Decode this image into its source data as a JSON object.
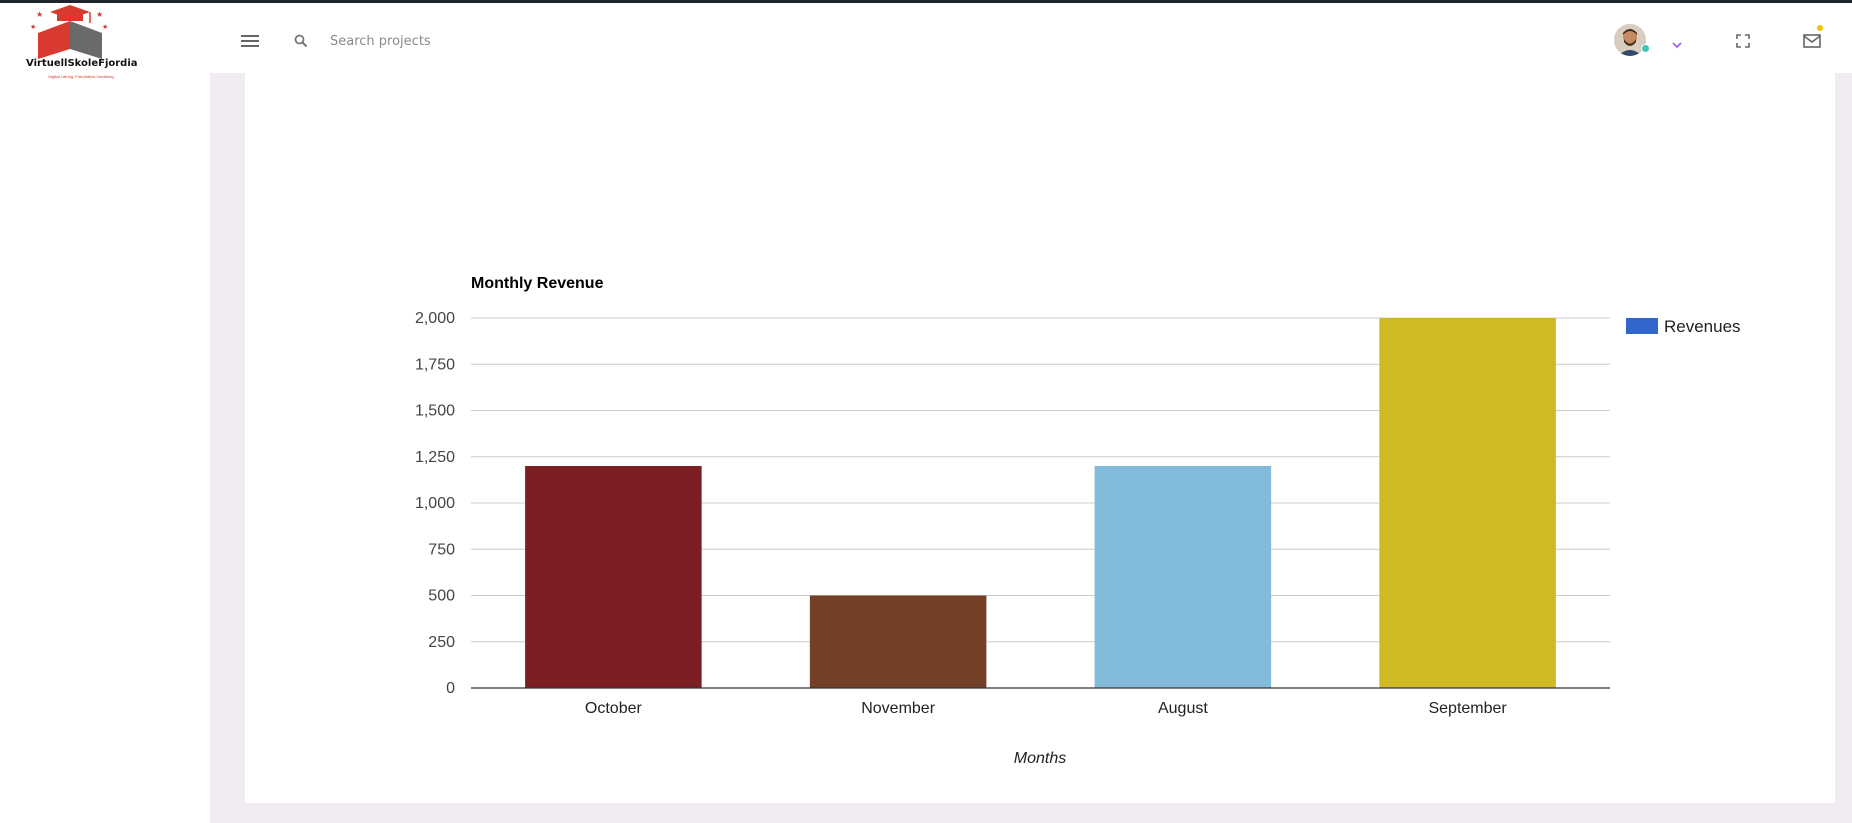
{
  "header": {
    "logo_name": "VirtuellSkoleFjordia",
    "logo_tagline": "Digital Læring, Fremtidens Vurdering",
    "search_placeholder": "Search projects"
  },
  "icons": {
    "menu": "menu-icon",
    "search": "search-icon",
    "chevron": "chevron-down-icon",
    "fullscreen": "fullscreen-icon",
    "mail": "mail-icon"
  },
  "colors": {
    "accent": "#9b59f6",
    "notification": "#f2c200",
    "legend": "#3366cc",
    "page_bg": "#f0ecf2"
  },
  "chart_data": {
    "type": "bar",
    "title": "Monthly Revenue",
    "xlabel": "Months",
    "ylabel": "",
    "categories": [
      "October",
      "November",
      "August",
      "September"
    ],
    "series": [
      {
        "name": "Revenues",
        "values": [
          1200,
          500,
          1200,
          2000
        ]
      }
    ],
    "bar_colors": [
      "#7b1f24",
      "#744128",
      "#82bcda",
      "#cfba25"
    ],
    "ylim": [
      0,
      2000
    ],
    "yticks": [
      0,
      250,
      500,
      750,
      1000,
      1250,
      1500,
      1750,
      2000
    ],
    "ytick_labels": [
      "0",
      "250",
      "500",
      "750",
      "1,000",
      "1,250",
      "1,500",
      "1,750",
      "2,000"
    ],
    "grid": true,
    "legend_position": "right"
  }
}
